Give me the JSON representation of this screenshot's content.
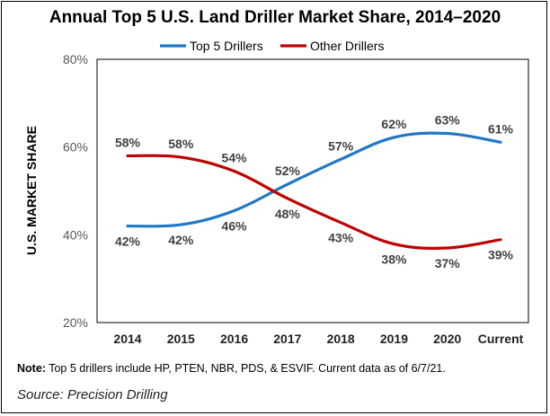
{
  "chart_data": {
    "type": "line",
    "title": "Annual Top 5 U.S. Land Driller Market Share, 2014–2020",
    "xlabel": "",
    "ylabel": "U.S. MARKET SHARE",
    "ylim": [
      20,
      80
    ],
    "yticks": [
      20,
      40,
      60,
      80
    ],
    "ytick_labels": [
      "20%",
      "40%",
      "60%",
      "80%"
    ],
    "categories": [
      "2014",
      "2015",
      "2016",
      "2017",
      "2018",
      "2019",
      "2020",
      "Current"
    ],
    "legend_position": "top",
    "grid": false,
    "series": [
      {
        "name": "Top 5 Drillers",
        "color": "#1f77c8",
        "values": [
          42,
          42.3,
          45.5,
          51.5,
          57.2,
          62.2,
          63.1,
          61.1
        ],
        "labels": [
          "42%",
          "42%",
          "46%",
          "52%",
          "57%",
          "62%",
          "63%",
          "61%"
        ]
      },
      {
        "name": "Other Drillers",
        "color": "#c00000",
        "values": [
          58,
          57.7,
          54.5,
          48.3,
          42.8,
          37.9,
          37,
          38.9
        ],
        "labels": [
          "58%",
          "58%",
          "54%",
          "48%",
          "43%",
          "38%",
          "37%",
          "39%"
        ]
      }
    ]
  },
  "note": {
    "label": "Note:",
    "text": "Top 5 drillers include HP, PTEN, NBR, PDS, & ESVIF. Current data as of 6/7/21."
  },
  "source": "Source: Precision Drilling"
}
